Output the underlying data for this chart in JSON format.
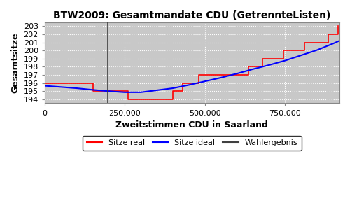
{
  "title": "BTW2009: Gesamtmandate CDU (GetrennteListen)",
  "xlabel": "Zweitstimmen CDU in Saarland",
  "ylabel": "Gesamtsitze",
  "bg_color": "#c8c8c8",
  "ylim": [
    193.5,
    203.5
  ],
  "xlim": [
    0,
    920000
  ],
  "yticks": [
    194,
    195,
    196,
    197,
    198,
    199,
    200,
    201,
    202,
    203
  ],
  "xticks": [
    0,
    250000,
    500000,
    750000
  ],
  "xticklabels": [
    "0",
    "250.000",
    "500.000",
    "750.000"
  ],
  "wahlergebnis_x": 196000,
  "legend_labels": [
    "Sitze real",
    "Sitze ideal",
    "Wahlergebnis"
  ],
  "real_x": [
    0,
    50000,
    100000,
    115000,
    130000,
    150000,
    160000,
    190000,
    210000,
    230000,
    250000,
    260000,
    280000,
    295000,
    310000,
    340000,
    370000,
    390000,
    400000,
    415000,
    430000,
    450000,
    465000,
    480000,
    490000,
    510000,
    530000,
    545000,
    565000,
    580000,
    600000,
    620000,
    635000,
    650000,
    660000,
    680000,
    700000,
    720000,
    735000,
    745000,
    760000,
    775000,
    790000,
    810000,
    825000,
    840000,
    855000,
    870000,
    885000,
    900000,
    915000
  ],
  "real_y": [
    196,
    196,
    196,
    196,
    196,
    195,
    195,
    195,
    195,
    195,
    195,
    194,
    194,
    194,
    194,
    194,
    194,
    194,
    195,
    195,
    196,
    196,
    196,
    197,
    197,
    197,
    197,
    197,
    197,
    197,
    197,
    197,
    198,
    198,
    198,
    199,
    199,
    199,
    199,
    200,
    200,
    200,
    200,
    201,
    201,
    201,
    201,
    201,
    202,
    202,
    203
  ],
  "ideal_x": [
    0,
    50000,
    100000,
    150000,
    196000,
    250000,
    300000,
    350000,
    400000,
    450000,
    500000,
    550000,
    600000,
    650000,
    700000,
    750000,
    800000,
    850000,
    900000,
    920000
  ],
  "ideal_y": [
    195.65,
    195.5,
    195.35,
    195.15,
    195.0,
    194.85,
    194.85,
    195.1,
    195.35,
    195.75,
    196.2,
    196.65,
    197.15,
    197.7,
    198.2,
    198.75,
    199.4,
    200.05,
    200.85,
    201.2
  ]
}
